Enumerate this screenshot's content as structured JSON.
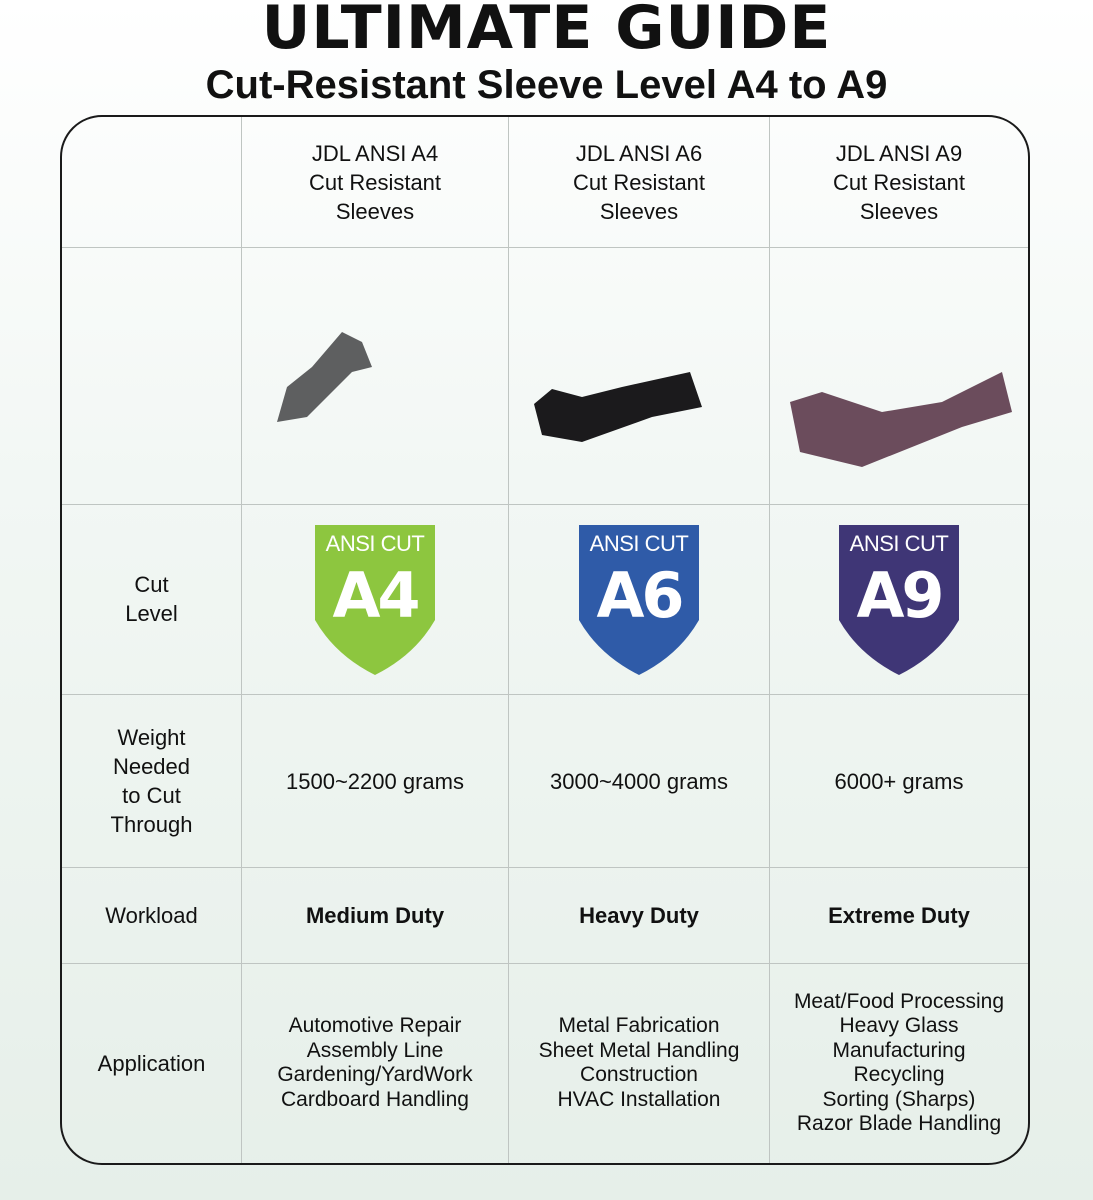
{
  "header": {
    "title": "ULTIMATE GUIDE",
    "subtitle": "Cut-Resistant Sleeve Level A4 to A9"
  },
  "columns": [
    {
      "name_lines": [
        "JDL ANSI A4",
        "Cut Resistant",
        "Sleeves"
      ],
      "badge_top": "ANSI CUT",
      "badge_level": "A4",
      "badge_color": "#8dc63f",
      "sleeve_color": "#5e5f60",
      "weight": "1500~2200 grams",
      "workload": "Medium Duty",
      "applications": [
        "Automotive Repair",
        "Assembly Line",
        "Gardening/YardWork",
        "Cardboard Handling"
      ]
    },
    {
      "name_lines": [
        "JDL ANSI A6",
        "Cut Resistant",
        "Sleeves"
      ],
      "badge_top": "ANSI CUT",
      "badge_level": "A6",
      "badge_color": "#2f5ba8",
      "sleeve_color": "#1b1a1c",
      "weight": "3000~4000 grams",
      "workload": "Heavy Duty",
      "applications": [
        "Metal Fabrication",
        "Sheet Metal Handling",
        "Construction",
        "HVAC Installation"
      ]
    },
    {
      "name_lines": [
        "JDL ANSI A9",
        "Cut Resistant",
        "Sleeves"
      ],
      "badge_top": "ANSI CUT",
      "badge_level": "A9",
      "badge_color": "#3f3676",
      "sleeve_color": "#6b4c5c",
      "weight": "6000+ grams",
      "workload": "Extreme Duty",
      "applications": [
        "Meat/Food Processing",
        "Heavy Glass",
        "Manufacturing",
        "Recycling",
        "Sorting (Sharps)",
        "Razor Blade Handling"
      ]
    }
  ],
  "row_labels": {
    "cut_level": [
      "Cut",
      "Level"
    ],
    "weight": [
      "Weight",
      "Needed",
      "to Cut",
      "Through"
    ],
    "workload": "Workload",
    "application": "Application"
  }
}
